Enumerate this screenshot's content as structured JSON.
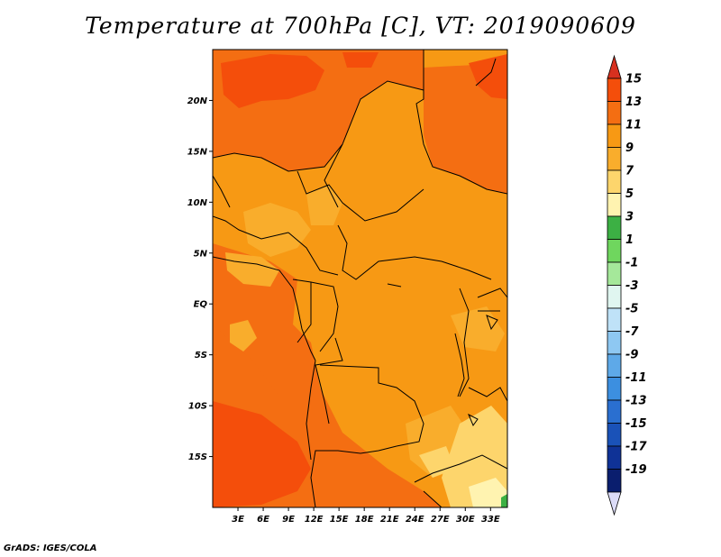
{
  "title": "Temperature at 700hPa [C], VT: 2019090609",
  "footer": "GrADS: IGES/COLA",
  "map": {
    "lat_labels": [
      "20N",
      "15N",
      "10N",
      "5N",
      "EQ",
      "5S",
      "10S",
      "15S"
    ],
    "lon_labels": [
      "3E",
      "6E",
      "9E",
      "12E",
      "15E",
      "18E",
      "21E",
      "24E",
      "27E",
      "30E",
      "33E"
    ]
  },
  "colorbar": {
    "labels": [
      "15",
      "13",
      "11",
      "9",
      "7",
      "5",
      "3",
      "1",
      "-1",
      "-3",
      "-5",
      "-7",
      "-9",
      "-11",
      "-13",
      "-15",
      "-17",
      "-19"
    ],
    "colors": [
      "#d7301f",
      "#f44e0b",
      "#f46e12",
      "#f79914",
      "#f9ad2c",
      "#fdd56c",
      "#fff3b0",
      "#3cb044",
      "#6fd65e",
      "#a5e89a",
      "#e0f6f0",
      "#bfe2f8",
      "#8ec8f2",
      "#5ea9e8",
      "#3c8fe0",
      "#2a6fd0",
      "#1a52b8",
      "#0f3296",
      "#0a1e6e",
      "#dcdcf8"
    ]
  },
  "chart_data": {
    "type": "heatmap",
    "title": "Temperature at 700hPa [C], VT: 2019090609",
    "units": "C",
    "lat_range": [
      -20,
      25
    ],
    "lon_range": [
      0,
      35
    ],
    "levels": [
      -19,
      -17,
      -15,
      -13,
      -11,
      -9,
      -7,
      -5,
      -3,
      -1,
      1,
      3,
      5,
      7,
      9,
      11,
      13,
      15
    ],
    "dominant_range": [
      7,
      15
    ]
  }
}
